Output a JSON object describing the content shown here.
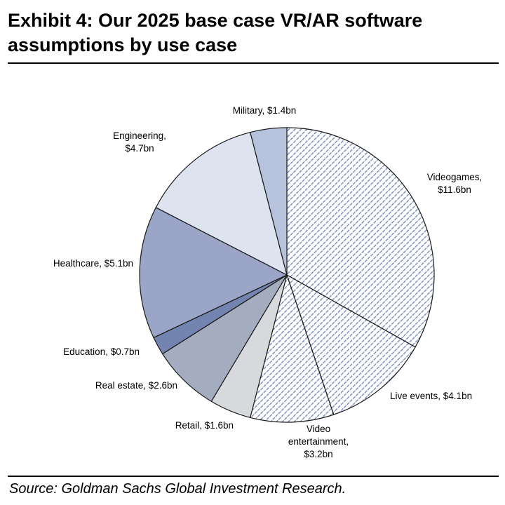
{
  "header": {
    "title_line1": "Exhibit 4: Our 2025 base case VR/AR software",
    "title_line2": "assumptions by use case"
  },
  "footer": {
    "source": "Source: Goldman Sachs Global Investment Research."
  },
  "chart_data": {
    "type": "pie",
    "title": "Exhibit 4: Our 2025 base case VR/AR software assumptions by use case",
    "unit": "bn",
    "slices": [
      {
        "name": "Videogames",
        "value": 11.6,
        "label_lines": [
          "Videogames,",
          "$11.6bn"
        ],
        "fill": "hatch",
        "color": "#8fa0c8"
      },
      {
        "name": "Live events",
        "value": 4.1,
        "label_lines": [
          "Live events, $4.1bn"
        ],
        "fill": "hatch",
        "color": "#8fa0c8"
      },
      {
        "name": "Video entertainment",
        "value": 3.2,
        "label_lines": [
          "Video",
          "entertainment,",
          "$3.2bn"
        ],
        "fill": "hatch",
        "color": "#8fa0c8"
      },
      {
        "name": "Retail",
        "value": 1.6,
        "label_lines": [
          "Retail, $1.6bn"
        ],
        "fill": "solid",
        "color": "#d8d9dc"
      },
      {
        "name": "Real estate",
        "value": 2.6,
        "label_lines": [
          "Real estate, $2.6bn"
        ],
        "fill": "solid",
        "color": "#a4acbf"
      },
      {
        "name": "Education",
        "value": 0.7,
        "label_lines": [
          "Education, $0.7bn"
        ],
        "fill": "solid",
        "color": "#7484b0"
      },
      {
        "name": "Healthcare",
        "value": 5.1,
        "label_lines": [
          "Healthcare, $5.1bn"
        ],
        "fill": "solid",
        "color": "#9aa5c8"
      },
      {
        "name": "Engineering",
        "value": 4.7,
        "label_lines": [
          "Engineering,",
          "$4.7bn"
        ],
        "fill": "solid",
        "color": "#dde3ef"
      },
      {
        "name": "Military",
        "value": 1.4,
        "label_lines": [
          "Military, $1.4bn"
        ],
        "fill": "solid",
        "color": "#b7c2dc"
      }
    ]
  }
}
